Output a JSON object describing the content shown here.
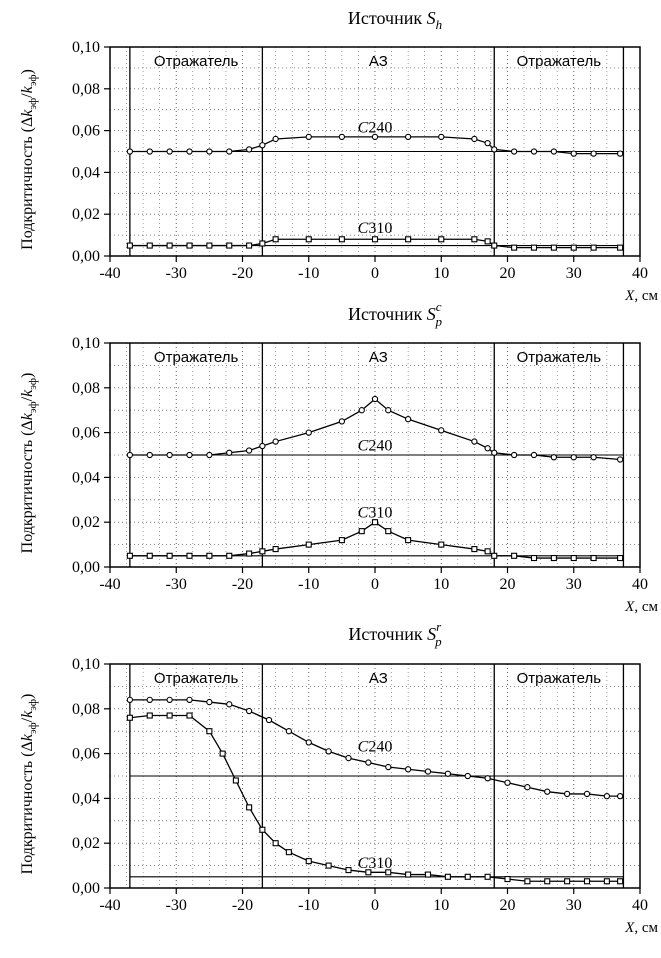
{
  "colors": {
    "ink": "#000000",
    "background": "#ffffff"
  },
  "chart_data": [
    {
      "type": "line",
      "title_prefix": "Источник ",
      "title_var": "S",
      "title_sub": "h",
      "title_sup": "",
      "ylabel": "Подкритичность (Δkэф/kэф)",
      "xlabel": "X, см",
      "xlim": [
        -40,
        40
      ],
      "ylim": [
        0,
        0.1
      ],
      "x_ticks": [
        "-40",
        "-30",
        "-20",
        "-10",
        "0",
        "10",
        "20",
        "30",
        "40"
      ],
      "y_ticks": [
        "0,00",
        "0,02",
        "0,04",
        "0,06",
        "0,08",
        "0,10"
      ],
      "grid": true,
      "regions": [
        "Отражатель",
        "АЗ",
        "Отражатель"
      ],
      "region_bounds": [
        -37,
        -17,
        18,
        37.5
      ],
      "series": [
        {
          "name": "C240",
          "marker": "circle",
          "baseline": 0.05,
          "x": [
            -37,
            -34,
            -31,
            -28,
            -25,
            -22,
            -19,
            -17,
            -15,
            -10,
            -5,
            0,
            5,
            10,
            15,
            17,
            18,
            21,
            24,
            27,
            30,
            33,
            37
          ],
          "y": [
            0.05,
            0.05,
            0.05,
            0.05,
            0.05,
            0.05,
            0.051,
            0.053,
            0.056,
            0.057,
            0.057,
            0.057,
            0.057,
            0.057,
            0.056,
            0.054,
            0.051,
            0.05,
            0.05,
            0.05,
            0.049,
            0.049,
            0.049
          ]
        },
        {
          "name": "C310",
          "marker": "square",
          "baseline": 0.005,
          "x": [
            -37,
            -34,
            -31,
            -28,
            -25,
            -22,
            -19,
            -17,
            -15,
            -10,
            -5,
            0,
            5,
            10,
            15,
            17,
            18,
            21,
            24,
            27,
            30,
            33,
            37
          ],
          "y": [
            0.005,
            0.005,
            0.005,
            0.005,
            0.005,
            0.005,
            0.005,
            0.006,
            0.008,
            0.008,
            0.008,
            0.008,
            0.008,
            0.008,
            0.008,
            0.007,
            0.005,
            0.004,
            0.004,
            0.004,
            0.004,
            0.004,
            0.004
          ]
        }
      ],
      "label_positions": {
        "C240": [
          0,
          0.059
        ],
        "C310": [
          0,
          0.011
        ]
      }
    },
    {
      "type": "line",
      "title_prefix": "Источник ",
      "title_var": "S",
      "title_sub": "p",
      "title_sup": "c",
      "ylabel": "Подкритичность (Δkэф/kэф)",
      "xlabel": "X, см",
      "xlim": [
        -40,
        40
      ],
      "ylim": [
        0,
        0.1
      ],
      "x_ticks": [
        "-40",
        "-30",
        "-20",
        "-10",
        "0",
        "10",
        "20",
        "30",
        "40"
      ],
      "y_ticks": [
        "0,00",
        "0,02",
        "0,04",
        "0,06",
        "0,08",
        "0,10"
      ],
      "grid": true,
      "regions": [
        "Отражатель",
        "АЗ",
        "Отражатель"
      ],
      "region_bounds": [
        -37,
        -17,
        18,
        37.5
      ],
      "series": [
        {
          "name": "C240",
          "marker": "circle",
          "baseline": 0.05,
          "x": [
            -37,
            -34,
            -31,
            -28,
            -25,
            -22,
            -19,
            -17,
            -15,
            -10,
            -5,
            -2,
            0,
            2,
            5,
            10,
            15,
            17,
            18,
            21,
            24,
            27,
            30,
            33,
            37
          ],
          "y": [
            0.05,
            0.05,
            0.05,
            0.05,
            0.05,
            0.051,
            0.052,
            0.054,
            0.056,
            0.06,
            0.065,
            0.07,
            0.075,
            0.07,
            0.066,
            0.061,
            0.056,
            0.053,
            0.051,
            0.05,
            0.05,
            0.049,
            0.049,
            0.049,
            0.048
          ]
        },
        {
          "name": "C310",
          "marker": "square",
          "baseline": 0.005,
          "x": [
            -37,
            -34,
            -31,
            -28,
            -25,
            -22,
            -19,
            -17,
            -15,
            -10,
            -5,
            -2,
            0,
            2,
            5,
            10,
            15,
            17,
            18,
            21,
            24,
            27,
            30,
            33,
            37
          ],
          "y": [
            0.005,
            0.005,
            0.005,
            0.005,
            0.005,
            0.005,
            0.006,
            0.007,
            0.008,
            0.01,
            0.012,
            0.016,
            0.02,
            0.016,
            0.012,
            0.01,
            0.008,
            0.007,
            0.005,
            0.005,
            0.004,
            0.004,
            0.004,
            0.004,
            0.004
          ]
        }
      ],
      "label_positions": {
        "C240": [
          0,
          0.052
        ],
        "C310": [
          0,
          0.022
        ]
      }
    },
    {
      "type": "line",
      "title_prefix": "Источник ",
      "title_var": "S",
      "title_sub": "p",
      "title_sup": "r",
      "ylabel": "Подкритичность (Δkэф/kэф)",
      "xlabel": "X, см",
      "xlim": [
        -40,
        40
      ],
      "ylim": [
        0,
        0.1
      ],
      "x_ticks": [
        "-40",
        "-30",
        "-20",
        "-10",
        "0",
        "10",
        "20",
        "30",
        "40"
      ],
      "y_ticks": [
        "0,00",
        "0,02",
        "0,04",
        "0,06",
        "0,08",
        "0,10"
      ],
      "grid": true,
      "regions": [
        "Отражатель",
        "АЗ",
        "Отражатель"
      ],
      "region_bounds": [
        -37,
        -17,
        18,
        37.5
      ],
      "series": [
        {
          "name": "C240",
          "marker": "circle",
          "baseline": 0.05,
          "x": [
            -37,
            -34,
            -31,
            -28,
            -25,
            -22,
            -19,
            -16,
            -13,
            -10,
            -7,
            -4,
            -1,
            2,
            5,
            8,
            11,
            14,
            17,
            20,
            23,
            26,
            29,
            32,
            35,
            37
          ],
          "y": [
            0.084,
            0.084,
            0.084,
            0.084,
            0.083,
            0.082,
            0.079,
            0.075,
            0.07,
            0.065,
            0.061,
            0.058,
            0.056,
            0.054,
            0.053,
            0.052,
            0.051,
            0.05,
            0.049,
            0.047,
            0.045,
            0.043,
            0.042,
            0.042,
            0.041,
            0.041
          ]
        },
        {
          "name": "C310",
          "marker": "square",
          "baseline": 0.005,
          "x": [
            -37,
            -34,
            -31,
            -28,
            -25,
            -23,
            -21,
            -19,
            -17,
            -15,
            -13,
            -10,
            -7,
            -4,
            -1,
            2,
            5,
            8,
            11,
            14,
            17,
            20,
            23,
            26,
            29,
            32,
            35,
            37
          ],
          "y": [
            0.076,
            0.077,
            0.077,
            0.077,
            0.07,
            0.06,
            0.048,
            0.036,
            0.026,
            0.02,
            0.016,
            0.012,
            0.01,
            0.008,
            0.007,
            0.007,
            0.006,
            0.006,
            0.005,
            0.005,
            0.005,
            0.004,
            0.003,
            0.003,
            0.003,
            0.003,
            0.003,
            0.003
          ]
        }
      ],
      "label_positions": {
        "C240": [
          0,
          0.061
        ],
        "C310": [
          0,
          0.009
        ]
      }
    }
  ]
}
